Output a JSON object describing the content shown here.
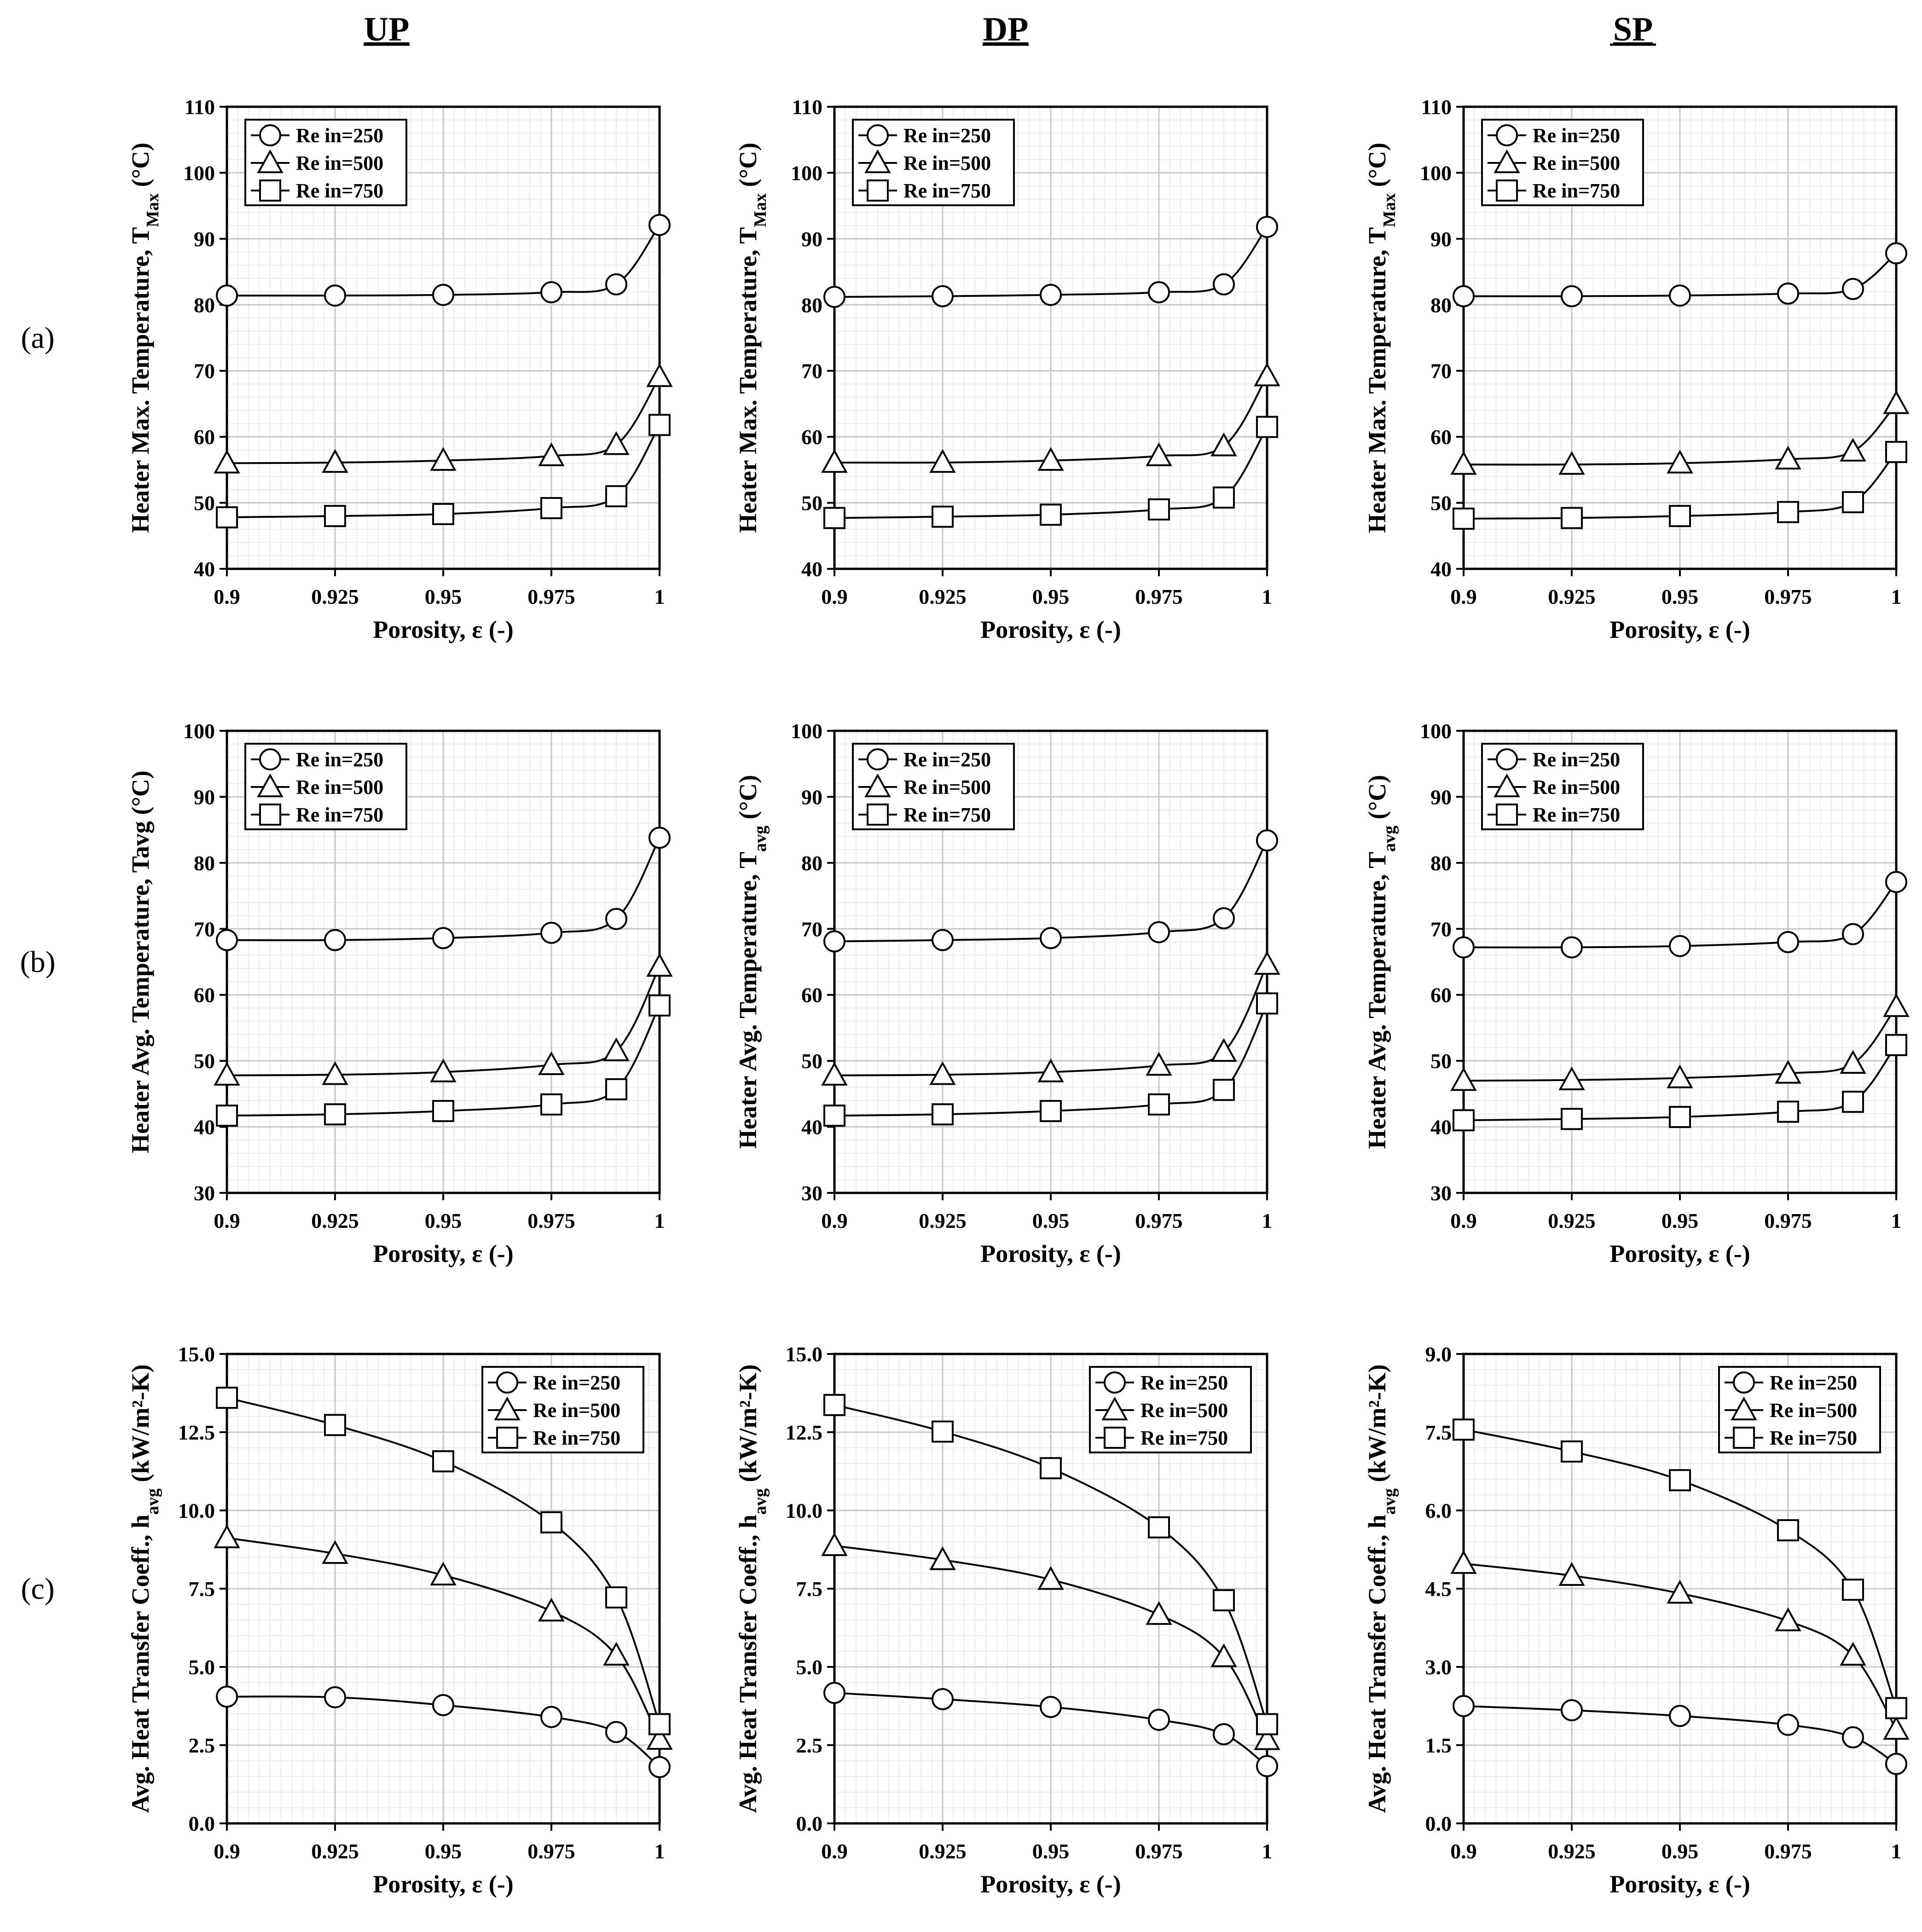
{
  "columns": [
    "UP",
    "DP",
    "SP"
  ],
  "row_labels": [
    "(a)",
    "(b)",
    "(c)"
  ],
  "legend_labels": [
    "Re in=250",
    "Re in=500",
    "Re in=750"
  ],
  "marker_names": [
    "circle",
    "triangle",
    "square"
  ],
  "chart_data": [
    {
      "id": "a-UP",
      "type": "line",
      "column": "UP",
      "row": "(a)",
      "xlabel": "Porosity, ε (-)",
      "ylabel": "Heater Max. Temperature, T",
      "ylabel_sub": "Max",
      "ylabel_suffix": " (°C)",
      "x": [
        0.9,
        0.925,
        0.95,
        0.975,
        0.99,
        1
      ],
      "xlim": [
        0.9,
        1
      ],
      "xticks": [
        0.9,
        0.925,
        0.95,
        0.975,
        1
      ],
      "xtick_labels": [
        "0.9",
        "0.925",
        "0.95",
        "0.975",
        "1"
      ],
      "ylim": [
        40,
        110
      ],
      "yticks": [
        40,
        50,
        60,
        70,
        80,
        90,
        100,
        110
      ],
      "ytick_labels": [
        "40",
        "50",
        "60",
        "70",
        "80",
        "90",
        "100",
        "110"
      ],
      "legend_pos": "top-left",
      "grid": true,
      "series": [
        {
          "name": "Re in=250",
          "values": [
            81.4,
            81.4,
            81.5,
            81.9,
            83.1,
            92.1
          ]
        },
        {
          "name": "Re in=500",
          "values": [
            56.0,
            56.1,
            56.4,
            57.1,
            58.8,
            69.1
          ]
        },
        {
          "name": "Re in=750",
          "values": [
            47.8,
            48.0,
            48.3,
            49.2,
            51.0,
            61.8
          ]
        }
      ]
    },
    {
      "id": "a-DP",
      "type": "line",
      "column": "DP",
      "row": "(a)",
      "xlabel": "Porosity, ε (-)",
      "ylabel": "Heater Max. Temperature, T",
      "ylabel_sub": "Max",
      "ylabel_suffix": " (°C)",
      "x": [
        0.9,
        0.925,
        0.95,
        0.975,
        0.99,
        1
      ],
      "xlim": [
        0.9,
        1
      ],
      "xticks": [
        0.9,
        0.925,
        0.95,
        0.975,
        1
      ],
      "xtick_labels": [
        "0.9",
        "0.925",
        "0.95",
        "0.975",
        "1"
      ],
      "ylim": [
        40,
        110
      ],
      "yticks": [
        40,
        50,
        60,
        70,
        80,
        90,
        100,
        110
      ],
      "ytick_labels": [
        "40",
        "50",
        "60",
        "70",
        "80",
        "90",
        "100",
        "110"
      ],
      "legend_pos": "top-left",
      "grid": true,
      "series": [
        {
          "name": "Re in=250",
          "values": [
            81.2,
            81.3,
            81.5,
            81.9,
            83.1,
            91.8
          ]
        },
        {
          "name": "Re in=500",
          "values": [
            56.1,
            56.1,
            56.4,
            57.1,
            58.6,
            69.2
          ]
        },
        {
          "name": "Re in=750",
          "values": [
            47.7,
            47.9,
            48.2,
            49.0,
            50.8,
            61.5
          ]
        }
      ]
    },
    {
      "id": "a-SP",
      "type": "line",
      "column": "SP",
      "row": "(a)",
      "xlabel": "Porosity, ε (-)",
      "ylabel": "Heater Max. Temperature, T",
      "ylabel_sub": "Max",
      "ylabel_suffix": " (°C)",
      "x": [
        0.9,
        0.925,
        0.95,
        0.975,
        0.99,
        1
      ],
      "xlim": [
        0.9,
        1
      ],
      "xticks": [
        0.9,
        0.925,
        0.95,
        0.975,
        1
      ],
      "xtick_labels": [
        "0.9",
        "0.925",
        "0.95",
        "0.975",
        "1"
      ],
      "ylim": [
        40,
        110
      ],
      "yticks": [
        40,
        50,
        60,
        70,
        80,
        90,
        100,
        110
      ],
      "ytick_labels": [
        "40",
        "50",
        "60",
        "70",
        "80",
        "90",
        "100",
        "110"
      ],
      "legend_pos": "top-left",
      "grid": true,
      "series": [
        {
          "name": "Re in=250",
          "values": [
            81.3,
            81.3,
            81.4,
            81.7,
            82.4,
            87.8
          ]
        },
        {
          "name": "Re in=500",
          "values": [
            55.8,
            55.8,
            56.0,
            56.6,
            57.8,
            65.0
          ]
        },
        {
          "name": "Re in=750",
          "values": [
            47.6,
            47.7,
            48.0,
            48.6,
            50.1,
            57.7
          ]
        }
      ]
    },
    {
      "id": "b-UP",
      "type": "line",
      "column": "UP",
      "row": "(b)",
      "xlabel": "Porosity, ε (-)",
      "ylabel": "Heater Avg. Temperature, Tavg (°C)",
      "ylabel_sub": "",
      "ylabel_suffix": "",
      "x": [
        0.9,
        0.925,
        0.95,
        0.975,
        0.99,
        1
      ],
      "xlim": [
        0.9,
        1
      ],
      "xticks": [
        0.9,
        0.925,
        0.95,
        0.975,
        1
      ],
      "xtick_labels": [
        "0.9",
        "0.925",
        "0.95",
        "0.975",
        "1"
      ],
      "ylim": [
        30,
        100
      ],
      "yticks": [
        30,
        40,
        50,
        60,
        70,
        80,
        90,
        100
      ],
      "ytick_labels": [
        "30",
        "40",
        "50",
        "60",
        "70",
        "80",
        "90",
        "100"
      ],
      "legend_pos": "top-left",
      "grid": true,
      "series": [
        {
          "name": "Re in=250",
          "values": [
            68.3,
            68.3,
            68.6,
            69.4,
            71.5,
            83.8
          ]
        },
        {
          "name": "Re in=500",
          "values": [
            47.8,
            47.9,
            48.3,
            49.4,
            51.5,
            64.3
          ]
        },
        {
          "name": "Re in=750",
          "values": [
            41.7,
            41.9,
            42.4,
            43.4,
            45.7,
            58.4
          ]
        }
      ]
    },
    {
      "id": "b-DP",
      "type": "line",
      "column": "DP",
      "row": "(b)",
      "xlabel": "Porosity, ε (-)",
      "ylabel": "Heater Avg. Temperature, T",
      "ylabel_sub": "avg",
      "ylabel_suffix": " (°C)",
      "x": [
        0.9,
        0.925,
        0.95,
        0.975,
        0.99,
        1
      ],
      "xlim": [
        0.9,
        1
      ],
      "xticks": [
        0.9,
        0.925,
        0.95,
        0.975,
        1
      ],
      "xtick_labels": [
        "0.9",
        "0.925",
        "0.95",
        "0.975",
        "1"
      ],
      "ylim": [
        30,
        100
      ],
      "yticks": [
        30,
        40,
        50,
        60,
        70,
        80,
        90,
        100
      ],
      "ytick_labels": [
        "30",
        "40",
        "50",
        "60",
        "70",
        "80",
        "90",
        "100"
      ],
      "legend_pos": "top-left",
      "grid": true,
      "series": [
        {
          "name": "Re in=250",
          "values": [
            68.1,
            68.3,
            68.6,
            69.5,
            71.6,
            83.4
          ]
        },
        {
          "name": "Re in=500",
          "values": [
            47.8,
            47.9,
            48.3,
            49.3,
            51.4,
            64.6
          ]
        },
        {
          "name": "Re in=750",
          "values": [
            41.7,
            41.9,
            42.4,
            43.4,
            45.6,
            58.7
          ]
        }
      ]
    },
    {
      "id": "b-SP",
      "type": "line",
      "column": "SP",
      "row": "(b)",
      "xlabel": "Porosity, ε (-)",
      "ylabel": "Heater Avg. Temperature, T",
      "ylabel_sub": "avg",
      "ylabel_suffix": " (°C)",
      "x": [
        0.9,
        0.925,
        0.95,
        0.975,
        0.99,
        1
      ],
      "xlim": [
        0.9,
        1
      ],
      "xticks": [
        0.9,
        0.925,
        0.95,
        0.975,
        1
      ],
      "xtick_labels": [
        "0.9",
        "0.925",
        "0.95",
        "0.975",
        "1"
      ],
      "ylim": [
        30,
        100
      ],
      "yticks": [
        30,
        40,
        50,
        60,
        70,
        80,
        90,
        100
      ],
      "ytick_labels": [
        "30",
        "40",
        "50",
        "60",
        "70",
        "80",
        "90",
        "100"
      ],
      "legend_pos": "top-left",
      "grid": true,
      "series": [
        {
          "name": "Re in=250",
          "values": [
            67.2,
            67.2,
            67.4,
            68.0,
            69.2,
            77.1
          ]
        },
        {
          "name": "Re in=500",
          "values": [
            47.0,
            47.1,
            47.4,
            48.1,
            49.6,
            58.2
          ]
        },
        {
          "name": "Re in=750",
          "values": [
            41.0,
            41.2,
            41.5,
            42.3,
            43.8,
            52.4
          ]
        }
      ]
    },
    {
      "id": "c-UP",
      "type": "line",
      "column": "UP",
      "row": "(c)",
      "xlabel": "Porosity, ε (-)",
      "ylabel": "Avg. Heat Transfer Coeff., h",
      "ylabel_sub": "avg",
      "ylabel_suffix": " (kW/m²-K)",
      "x": [
        0.9,
        0.925,
        0.95,
        0.975,
        0.99,
        1
      ],
      "xlim": [
        0.9,
        1
      ],
      "xticks": [
        0.9,
        0.925,
        0.95,
        0.975,
        1
      ],
      "xtick_labels": [
        "0.9",
        "0.925",
        "0.95",
        "0.975",
        "1"
      ],
      "ylim": [
        0,
        15
      ],
      "yticks": [
        0,
        2.5,
        5,
        7.5,
        10,
        12.5,
        15
      ],
      "ytick_labels": [
        "0.0",
        "2.5",
        "5.0",
        "7.5",
        "10.0",
        "12.5",
        "15.0"
      ],
      "legend_pos": "top-right",
      "grid": true,
      "series": [
        {
          "name": "Re in=250",
          "values": [
            4.05,
            4.03,
            3.78,
            3.4,
            2.92,
            1.8
          ]
        },
        {
          "name": "Re in=500",
          "values": [
            9.12,
            8.62,
            7.93,
            6.78,
            5.37,
            2.68
          ]
        },
        {
          "name": "Re in=750",
          "values": [
            13.6,
            12.73,
            11.57,
            9.62,
            7.22,
            3.17
          ]
        }
      ]
    },
    {
      "id": "c-DP",
      "type": "line",
      "column": "DP",
      "row": "(c)",
      "xlabel": "Porosity, ε (-)",
      "ylabel": "Avg. Heat Transfer Coeff., h",
      "ylabel_sub": "avg",
      "ylabel_suffix": " (kW/m²-K)",
      "x": [
        0.9,
        0.925,
        0.95,
        0.975,
        0.99,
        1
      ],
      "xlim": [
        0.9,
        1
      ],
      "xticks": [
        0.9,
        0.925,
        0.95,
        0.975,
        1
      ],
      "xtick_labels": [
        "0.9",
        "0.925",
        "0.95",
        "0.975",
        "1"
      ],
      "ylim": [
        0,
        15
      ],
      "yticks": [
        0,
        2.5,
        5,
        7.5,
        10,
        12.5,
        15
      ],
      "ytick_labels": [
        "0.0",
        "2.5",
        "5.0",
        "7.5",
        "10.0",
        "12.5",
        "15.0"
      ],
      "legend_pos": "top-right",
      "grid": true,
      "series": [
        {
          "name": "Re in=250",
          "values": [
            4.17,
            3.97,
            3.72,
            3.31,
            2.85,
            1.83
          ]
        },
        {
          "name": "Re in=500",
          "values": [
            8.87,
            8.42,
            7.79,
            6.67,
            5.32,
            2.67
          ]
        },
        {
          "name": "Re in=750",
          "values": [
            13.37,
            12.52,
            11.35,
            9.46,
            7.13,
            3.17
          ]
        }
      ]
    },
    {
      "id": "c-SP",
      "type": "line",
      "column": "SP",
      "row": "(c)",
      "xlabel": "Porosity, ε (-)",
      "ylabel": "Avg. Heat Transfer Coeff., h",
      "ylabel_sub": "avg",
      "ylabel_suffix": " (kW/m²-K)",
      "x": [
        0.9,
        0.925,
        0.95,
        0.975,
        0.99,
        1
      ],
      "xlim": [
        0.9,
        1
      ],
      "xticks": [
        0.9,
        0.925,
        0.95,
        0.975,
        1
      ],
      "xtick_labels": [
        "0.9",
        "0.925",
        "0.95",
        "0.975",
        "1"
      ],
      "ylim": [
        0,
        9
      ],
      "yticks": [
        0,
        1.5,
        3,
        4.5,
        6,
        7.5,
        9
      ],
      "ytick_labels": [
        "0.0",
        "1.5",
        "3.0",
        "4.5",
        "6.0",
        "7.5",
        "9.0"
      ],
      "legend_pos": "top-right",
      "grid": true,
      "series": [
        {
          "name": "Re in=250",
          "values": [
            2.25,
            2.17,
            2.06,
            1.89,
            1.65,
            1.14
          ]
        },
        {
          "name": "Re in=500",
          "values": [
            4.98,
            4.75,
            4.41,
            3.88,
            3.22,
            1.8
          ]
        },
        {
          "name": "Re in=750",
          "values": [
            7.55,
            7.13,
            6.58,
            5.62,
            4.48,
            2.21
          ]
        }
      ]
    }
  ]
}
